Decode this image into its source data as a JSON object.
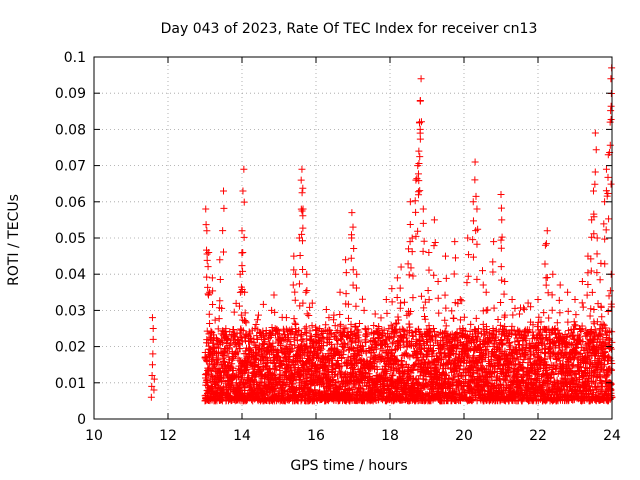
{
  "chart_data": {
    "type": "scatter",
    "title": "Day 043 of 2023, Rate Of TEC Index for receiver cn13",
    "xlabel": "GPS time / hours",
    "ylabel": "ROTI / TECUs",
    "xlim": [
      10,
      24
    ],
    "ylim": [
      0,
      0.1
    ],
    "xticks": [
      "10",
      "12",
      "14",
      "16",
      "18",
      "20",
      "22",
      "24"
    ],
    "yticks": [
      "0",
      "0.01",
      "0.02",
      "0.03",
      "0.04",
      "0.05",
      "0.06",
      "0.07",
      "0.08",
      "0.09",
      "0.1"
    ],
    "grid": true,
    "marker": "+",
    "color": "#ff0000",
    "series": [
      {
        "points": [
          [
            11.55,
            0.006
          ],
          [
            11.56,
            0.009
          ],
          [
            11.57,
            0.012
          ],
          [
            11.58,
            0.015
          ],
          [
            11.59,
            0.018
          ],
          [
            11.6,
            0.022
          ],
          [
            11.6,
            0.025
          ],
          [
            11.58,
            0.028
          ],
          [
            11.62,
            0.008
          ],
          [
            11.63,
            0.011
          ],
          [
            13.02,
            0.058
          ],
          [
            13.05,
            0.052
          ],
          [
            13.1,
            0.046
          ],
          [
            13.12,
            0.035
          ],
          [
            13.2,
            0.039
          ],
          [
            13.4,
            0.044
          ],
          [
            13.5,
            0.063
          ],
          [
            13.95,
            0.04
          ],
          [
            14.0,
            0.052
          ],
          [
            14.05,
            0.069
          ],
          [
            14.02,
            0.046
          ],
          [
            14.07,
            0.035
          ],
          [
            14.1,
            0.027
          ],
          [
            14.35,
            0.025
          ],
          [
            14.6,
            0.022
          ],
          [
            14.8,
            0.03
          ],
          [
            15.0,
            0.022
          ],
          [
            15.2,
            0.028
          ],
          [
            15.4,
            0.045
          ],
          [
            15.45,
            0.04
          ],
          [
            15.55,
            0.05
          ],
          [
            15.6,
            0.066
          ],
          [
            15.62,
            0.069
          ],
          [
            15.65,
            0.058
          ],
          [
            15.75,
            0.04
          ],
          [
            15.9,
            0.032
          ],
          [
            16.1,
            0.025
          ],
          [
            16.35,
            0.028
          ],
          [
            16.65,
            0.035
          ],
          [
            16.8,
            0.044
          ],
          [
            16.97,
            0.057
          ],
          [
            17.0,
            0.053
          ],
          [
            17.1,
            0.04
          ],
          [
            17.3,
            0.03
          ],
          [
            17.6,
            0.029
          ],
          [
            17.9,
            0.033
          ],
          [
            18.05,
            0.036
          ],
          [
            18.2,
            0.039
          ],
          [
            18.3,
            0.042
          ],
          [
            18.5,
            0.047
          ],
          [
            18.55,
            0.06
          ],
          [
            18.6,
            0.05
          ],
          [
            18.7,
            0.066
          ],
          [
            18.75,
            0.07
          ],
          [
            18.78,
            0.074
          ],
          [
            18.8,
            0.082
          ],
          [
            18.82,
            0.088
          ],
          [
            18.84,
            0.094
          ],
          [
            18.9,
            0.058
          ],
          [
            19.05,
            0.046
          ],
          [
            19.2,
            0.055
          ],
          [
            19.3,
            0.038
          ],
          [
            19.5,
            0.045
          ],
          [
            19.75,
            0.049
          ],
          [
            19.9,
            0.033
          ],
          [
            20.1,
            0.05
          ],
          [
            20.25,
            0.06
          ],
          [
            20.3,
            0.071
          ],
          [
            20.35,
            0.058
          ],
          [
            20.5,
            0.041
          ],
          [
            20.6,
            0.035
          ],
          [
            20.8,
            0.049
          ],
          [
            21.0,
            0.062
          ],
          [
            21.02,
            0.055
          ],
          [
            21.1,
            0.038
          ],
          [
            21.3,
            0.033
          ],
          [
            21.5,
            0.029
          ],
          [
            21.8,
            0.031
          ],
          [
            22.0,
            0.033
          ],
          [
            22.2,
            0.048
          ],
          [
            22.25,
            0.052
          ],
          [
            22.4,
            0.04
          ],
          [
            22.6,
            0.037
          ],
          [
            22.8,
            0.035
          ],
          [
            23.0,
            0.033
          ],
          [
            23.2,
            0.038
          ],
          [
            23.35,
            0.045
          ],
          [
            23.45,
            0.055
          ],
          [
            23.5,
            0.063
          ],
          [
            23.55,
            0.079
          ],
          [
            23.6,
            0.05
          ],
          [
            23.7,
            0.043
          ],
          [
            23.8,
            0.06
          ],
          [
            23.85,
            0.069
          ],
          [
            23.9,
            0.073
          ],
          [
            23.95,
            0.082
          ],
          [
            23.97,
            0.094
          ],
          [
            23.99,
            0.097
          ],
          [
            23.98,
            0.04
          ],
          [
            23.92,
            0.034
          ]
        ],
        "dense_band": {
          "x_range": [
            13.0,
            24.0
          ],
          "typical_y_range": [
            0.005,
            0.025
          ]
        }
      }
    ]
  }
}
